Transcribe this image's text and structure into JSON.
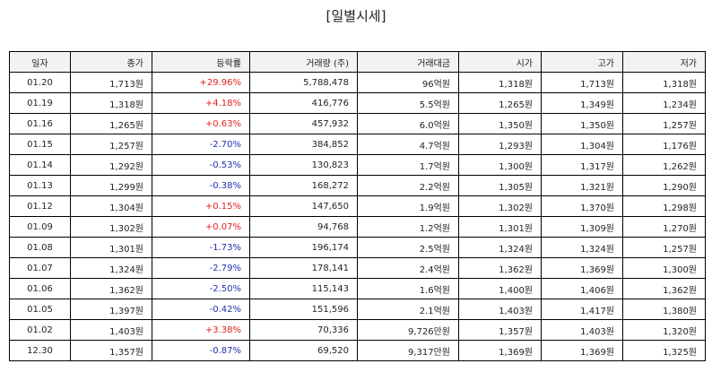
{
  "title": "[일별시세]",
  "colors": {
    "up": "#e02020",
    "down": "#2030b0"
  },
  "table": {
    "headers": [
      "일자",
      "종가",
      "등락률",
      "거래량 (주)",
      "거래대금",
      "시가",
      "고가",
      "저가"
    ],
    "rows": [
      {
        "date": "01.20",
        "close": "1,713원",
        "change": "+29.96%",
        "direction": "up",
        "volume": "5,788,478",
        "amount": "96억원",
        "open": "1,318원",
        "high": "1,713원",
        "low": "1,318원"
      },
      {
        "date": "01.19",
        "close": "1,318원",
        "change": "+4.18%",
        "direction": "up",
        "volume": "416,776",
        "amount": "5.5억원",
        "open": "1,265원",
        "high": "1,349원",
        "low": "1,234원"
      },
      {
        "date": "01.16",
        "close": "1,265원",
        "change": "+0.63%",
        "direction": "up",
        "volume": "457,932",
        "amount": "6.0억원",
        "open": "1,350원",
        "high": "1,350원",
        "low": "1,257원"
      },
      {
        "date": "01.15",
        "close": "1,257원",
        "change": "-2.70%",
        "direction": "down",
        "volume": "384,852",
        "amount": "4.7억원",
        "open": "1,293원",
        "high": "1,304원",
        "low": "1,176원"
      },
      {
        "date": "01.14",
        "close": "1,292원",
        "change": "-0.53%",
        "direction": "down",
        "volume": "130,823",
        "amount": "1.7억원",
        "open": "1,300원",
        "high": "1,317원",
        "low": "1,262원"
      },
      {
        "date": "01.13",
        "close": "1,299원",
        "change": "-0.38%",
        "direction": "down",
        "volume": "168,272",
        "amount": "2.2억원",
        "open": "1,305원",
        "high": "1,321원",
        "low": "1,290원"
      },
      {
        "date": "01.12",
        "close": "1,304원",
        "change": "+0.15%",
        "direction": "up",
        "volume": "147,650",
        "amount": "1.9억원",
        "open": "1,302원",
        "high": "1,370원",
        "low": "1,298원"
      },
      {
        "date": "01.09",
        "close": "1,302원",
        "change": "+0.07%",
        "direction": "up",
        "volume": "94,768",
        "amount": "1.2억원",
        "open": "1,301원",
        "high": "1,309원",
        "low": "1,270원"
      },
      {
        "date": "01.08",
        "close": "1,301원",
        "change": "-1.73%",
        "direction": "down",
        "volume": "196,174",
        "amount": "2.5억원",
        "open": "1,324원",
        "high": "1,324원",
        "low": "1,257원"
      },
      {
        "date": "01.07",
        "close": "1,324원",
        "change": "-2.79%",
        "direction": "down",
        "volume": "178,141",
        "amount": "2.4억원",
        "open": "1,362원",
        "high": "1,369원",
        "low": "1,300원"
      },
      {
        "date": "01.06",
        "close": "1,362원",
        "change": "-2.50%",
        "direction": "down",
        "volume": "115,143",
        "amount": "1.6억원",
        "open": "1,400원",
        "high": "1,406원",
        "low": "1,362원"
      },
      {
        "date": "01.05",
        "close": "1,397원",
        "change": "-0.42%",
        "direction": "down",
        "volume": "151,596",
        "amount": "2.1억원",
        "open": "1,403원",
        "high": "1,417원",
        "low": "1,380원"
      },
      {
        "date": "01.02",
        "close": "1,403원",
        "change": "+3.38%",
        "direction": "up",
        "volume": "70,336",
        "amount": "9,726만원",
        "open": "1,357원",
        "high": "1,403원",
        "low": "1,320원"
      },
      {
        "date": "12.30",
        "close": "1,357원",
        "change": "-0.87%",
        "direction": "down",
        "volume": "69,520",
        "amount": "9,317만원",
        "open": "1,369원",
        "high": "1,369원",
        "low": "1,325원"
      }
    ]
  }
}
